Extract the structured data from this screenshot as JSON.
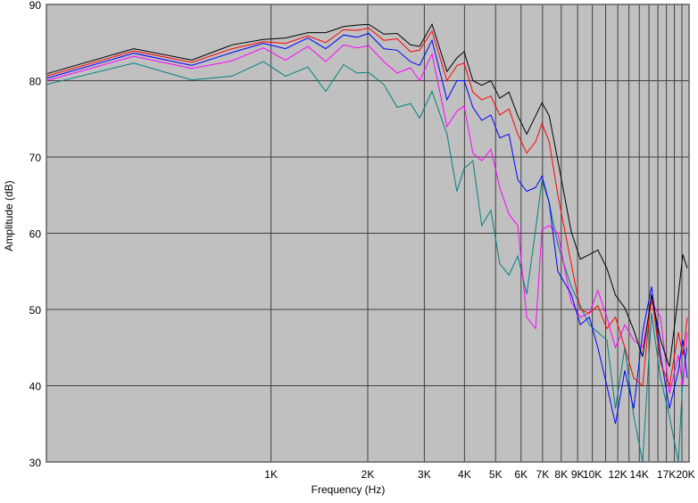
{
  "chart_data": {
    "type": "line",
    "title": "",
    "xlabel": "Frequency (Hz)",
    "ylabel": "Amplitude (dB)",
    "xscale": "log",
    "xlim": [
      200,
      20000
    ],
    "ylim": [
      30,
      90
    ],
    "grid": true,
    "yticks": [
      30,
      40,
      50,
      60,
      70,
      80,
      90
    ],
    "xticks": [
      {
        "value": 1000,
        "label": "1K"
      },
      {
        "value": 2000,
        "label": "2K"
      },
      {
        "value": 3000,
        "label": "3K"
      },
      {
        "value": 4000,
        "label": "4K"
      },
      {
        "value": 5000,
        "label": "5K"
      },
      {
        "value": 6000,
        "label": "6K"
      },
      {
        "value": 7000,
        "label": "7K"
      },
      {
        "value": 8000,
        "label": "8K"
      },
      {
        "value": 9000,
        "label": "9K"
      },
      {
        "value": 10000,
        "label": "10K"
      },
      {
        "value": 12000,
        "label": "12K"
      },
      {
        "value": 14000,
        "label": "14K"
      },
      {
        "value": 17000,
        "label": "17K"
      },
      {
        "value": 20000,
        "label": "20K"
      }
    ],
    "xgrid": [
      1000,
      2000,
      3000,
      4000,
      5000,
      6000,
      7000,
      8000,
      9000,
      10000,
      11000,
      12000,
      13000,
      14000,
      15000,
      16000,
      17000,
      18000,
      19000,
      20000
    ],
    "x": [
      200,
      374,
      567,
      756,
      946,
      1110,
      1302,
      1480,
      1682,
      1852,
      2013,
      2244,
      2470,
      2717,
      2900,
      3170,
      3530,
      3790,
      3990,
      4250,
      4530,
      4830,
      5150,
      5500,
      5860,
      6250,
      6660,
      6970,
      7340,
      7810,
      8600,
      9170,
      9780,
      10400,
      11100,
      11800,
      12620,
      13450,
      14340,
      15280,
      16300,
      17380,
      18520,
      19120,
      19740
    ],
    "series": [
      {
        "name": "black",
        "color": "#000000",
        "values": [
          80.9,
          84.2,
          82.7,
          84.7,
          85.4,
          85.6,
          86.3,
          86.3,
          87.1,
          87.3,
          87.4,
          86.1,
          86.2,
          84.7,
          84.5,
          87.4,
          81.2,
          83,
          83.8,
          80,
          79.4,
          80,
          77.7,
          78.5,
          75.4,
          73,
          75.4,
          77.1,
          75.4,
          69.5,
          60.2,
          56.6,
          57.2,
          57.8,
          55.4,
          51.9,
          50.2,
          47.3,
          43.8,
          51.9,
          46,
          42.5,
          51.9,
          57.2,
          55.4
        ]
      },
      {
        "name": "red",
        "color": "#ff0000",
        "values": [
          80.6,
          83.9,
          82.4,
          84.2,
          85.1,
          84.9,
          85.9,
          85,
          86.7,
          86.6,
          86.9,
          85.3,
          85.5,
          83.8,
          84,
          86.5,
          80,
          82,
          82.3,
          78.5,
          77.5,
          78,
          75.5,
          76.3,
          73,
          70.5,
          72,
          74.4,
          72,
          65,
          56,
          50,
          49.5,
          50.5,
          47.5,
          49,
          45,
          41,
          40,
          52,
          43,
          40,
          47,
          44,
          49
        ]
      },
      {
        "name": "blue",
        "color": "#0000ff",
        "values": [
          80.3,
          83.6,
          82,
          83.7,
          84.9,
          84.2,
          85.6,
          84.2,
          86,
          85.7,
          86.2,
          84.2,
          84,
          82.5,
          82,
          85.3,
          77.5,
          80,
          80,
          76.5,
          74.8,
          75.5,
          72.5,
          73,
          67,
          65.5,
          66,
          67.5,
          64,
          55,
          52,
          48,
          49,
          45,
          40,
          35,
          42,
          37,
          47,
          53,
          44,
          37,
          42,
          46,
          41
        ]
      },
      {
        "name": "magenta",
        "color": "#ff00ff",
        "values": [
          80,
          83.2,
          81.6,
          82.6,
          84.3,
          82.7,
          84.5,
          82.5,
          84.7,
          84.3,
          84.6,
          82.5,
          81,
          81.7,
          80,
          83.5,
          74,
          76,
          76.7,
          70.5,
          69.5,
          71,
          66,
          62.5,
          61,
          49,
          47.5,
          60.5,
          61,
          60,
          51,
          49,
          49.5,
          52.5,
          49,
          45,
          48,
          46,
          45,
          51,
          49,
          39,
          44,
          40,
          47
        ]
      },
      {
        "name": "teal",
        "color": "#008080",
        "values": [
          79.5,
          82.3,
          80.1,
          80.6,
          82.5,
          80.6,
          81.8,
          78.6,
          82.1,
          81,
          81.1,
          79.5,
          76.5,
          77,
          75.1,
          78.6,
          73,
          65.5,
          68.5,
          69.5,
          61,
          63,
          56,
          54.5,
          57,
          52,
          60.5,
          67,
          64,
          58.5,
          53,
          50.5,
          48,
          47,
          46,
          37,
          45,
          36,
          30,
          49.5,
          41,
          36,
          30,
          41,
          45
        ]
      }
    ],
    "colors": {
      "plot_background": "#c0c0c0",
      "grid": "#404040"
    }
  }
}
